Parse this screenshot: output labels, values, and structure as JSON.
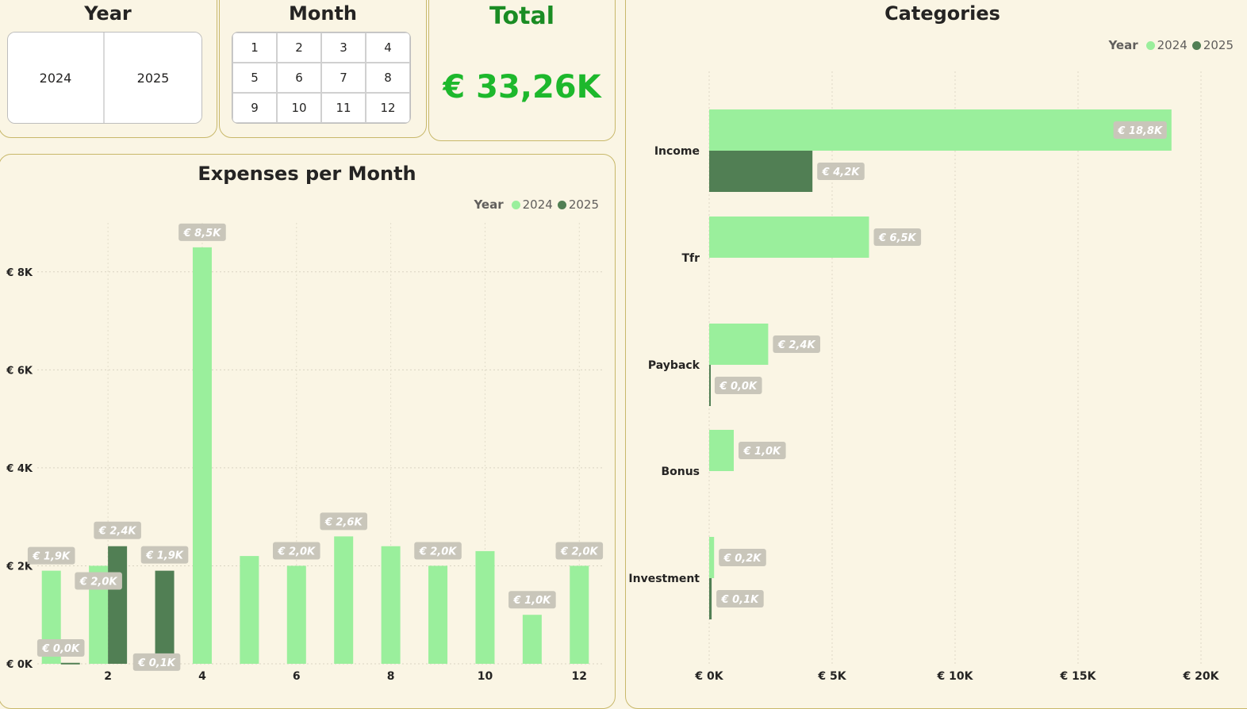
{
  "year_slicer": {
    "title": "Year",
    "options": [
      "2024",
      "2025"
    ]
  },
  "month_slicer": {
    "title": "Month",
    "options": [
      "1",
      "2",
      "3",
      "4",
      "5",
      "6",
      "7",
      "8",
      "9",
      "10",
      "11",
      "12"
    ]
  },
  "kpi": {
    "title": "Total",
    "value": "€ 33,26K",
    "color": "#1db82c"
  },
  "colors": {
    "y2024": "#9aef9c",
    "y2025": "#517f54",
    "label_bg": "#c9c6ba",
    "label_text": "#ffffff",
    "card_border": "#c8b86a",
    "bg": "#faf5e4"
  },
  "expenses_chart": {
    "title": "Expenses per Month",
    "legend": {
      "title": "Year",
      "items": [
        "2024",
        "2025"
      ]
    },
    "y_tick_labels": [
      "€ 0K",
      "€ 2K",
      "€ 4K",
      "€ 6K",
      "€ 8K"
    ],
    "x_tick_labels": [
      "2",
      "4",
      "6",
      "8",
      "10",
      "12"
    ]
  },
  "categories_chart": {
    "title": "Categories",
    "legend": {
      "title": "Year",
      "items": [
        "2024",
        "2025"
      ]
    },
    "x_tick_labels": [
      "€ 0K",
      "€ 5K",
      "€ 10K",
      "€ 15K",
      "€ 20K"
    ]
  },
  "chart_data": [
    {
      "type": "bar",
      "title": "Expenses per Month",
      "xlabel": "",
      "ylabel": "",
      "categories": [
        1,
        2,
        3,
        4,
        5,
        6,
        7,
        8,
        9,
        10,
        11,
        12
      ],
      "ylim": [
        0,
        9000
      ],
      "grid": true,
      "legend": "top-right",
      "series": [
        {
          "name": "2024",
          "values": [
            1900,
            2000,
            100,
            8500,
            2200,
            2000,
            2600,
            2400,
            2000,
            2300,
            1000,
            2000
          ],
          "labels": [
            "€ 1,9K",
            "€ 2,0K",
            "€ 0,1K",
            "€ 8,5K",
            "",
            "€ 2,0K",
            "€ 2,6K",
            "",
            "€ 2,0K",
            "",
            "€ 1,0K",
            "€ 2,0K"
          ]
        },
        {
          "name": "2025",
          "values": [
            20,
            2400,
            1900,
            null,
            null,
            null,
            null,
            null,
            null,
            null,
            null,
            null
          ],
          "labels": [
            "€ 0,0K",
            "€ 2,4K",
            "€ 1,9K",
            "",
            "",
            "",
            "",
            "",
            "",
            "",
            "",
            ""
          ]
        }
      ]
    },
    {
      "type": "bar",
      "orientation": "horizontal",
      "title": "Categories",
      "xlabel": "",
      "ylabel": "",
      "categories": [
        "Income",
        "Tfr",
        "Payback",
        "Bonus",
        "Investment"
      ],
      "xlim": [
        0,
        20000
      ],
      "grid": true,
      "legend": "top-right",
      "series": [
        {
          "name": "2024",
          "values": [
            18800,
            6500,
            2400,
            1000,
            200
          ],
          "labels": [
            "€ 18,8K",
            "€ 6,5K",
            "€ 2,4K",
            "€ 1,0K",
            "€ 0,2K"
          ]
        },
        {
          "name": "2025",
          "values": [
            4200,
            null,
            30,
            null,
            100
          ],
          "labels": [
            "€ 4,2K",
            "",
            "€ 0,0K",
            "",
            "€ 0,1K"
          ]
        }
      ]
    }
  ]
}
